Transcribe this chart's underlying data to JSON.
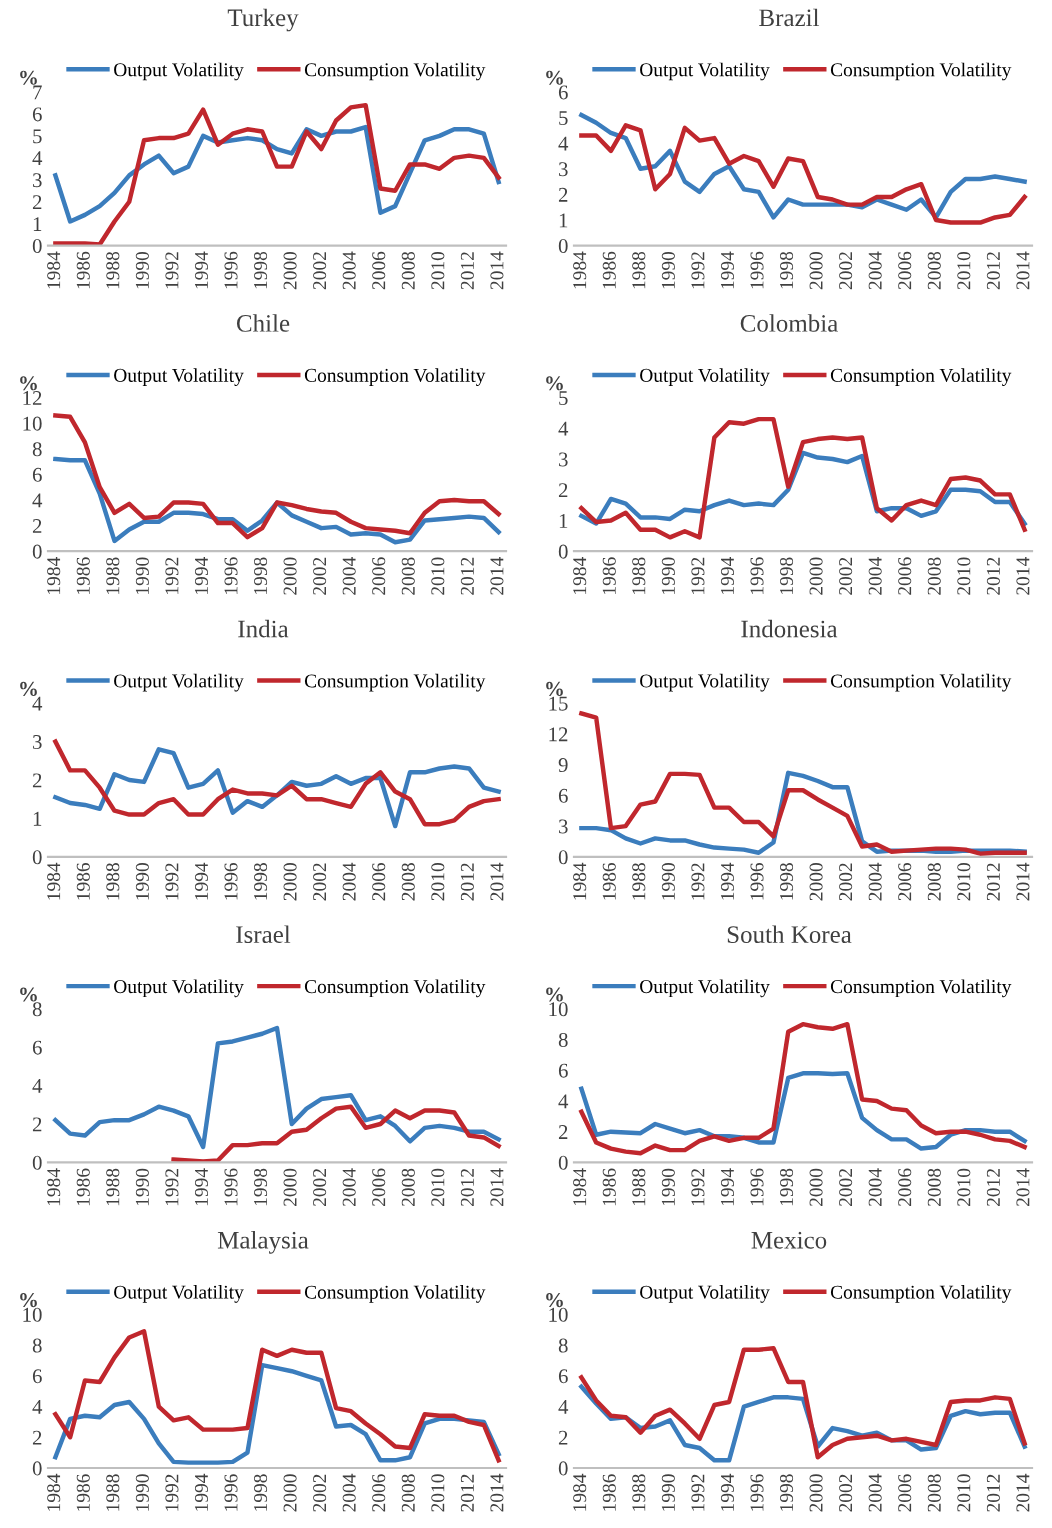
{
  "chart_data": [
    {
      "type": "line",
      "title": "Turkey",
      "ylabel": "%",
      "legend": "top",
      "ylim": [
        0,
        7
      ],
      "yticks": [
        0,
        1,
        2,
        3,
        4,
        5,
        6,
        7
      ],
      "categories": [
        "1984",
        null,
        "1986",
        null,
        "1988",
        null,
        "1990",
        null,
        "1992",
        null,
        "1994",
        null,
        "1996",
        null,
        "1998",
        null,
        "2000",
        null,
        "2002",
        null,
        "2004",
        null,
        "2006",
        null,
        "2008",
        null,
        "2010",
        null,
        "2012",
        null,
        "2014"
      ],
      "series": [
        {
          "name": "Output Volatility",
          "color": "#3b7dbd",
          "values": [
            3.2,
            1.1,
            1.4,
            1.8,
            2.4,
            3.2,
            3.7,
            4.1,
            3.3,
            3.6,
            5.0,
            4.7,
            4.8,
            4.9,
            4.8,
            4.4,
            4.2,
            5.3,
            5.0,
            5.2,
            5.2,
            5.4,
            1.5,
            1.8,
            3.3,
            4.8,
            5.0,
            5.3,
            5.3,
            5.1,
            2.9
          ]
        },
        {
          "name": "Consumption Volatility",
          "color": "#c0272d",
          "values": [
            0.1,
            0.1,
            0.1,
            0.05,
            1.1,
            2.0,
            4.8,
            4.9,
            4.9,
            5.1,
            6.2,
            4.6,
            5.1,
            5.3,
            5.2,
            3.6,
            3.6,
            5.2,
            4.4,
            5.7,
            6.3,
            6.4,
            2.6,
            2.5,
            3.7,
            3.7,
            3.5,
            4.0,
            4.1,
            4.0,
            3.1
          ]
        }
      ]
    },
    {
      "type": "line",
      "title": "Brazil",
      "ylabel": "%",
      "legend": "top",
      "ylim": [
        0,
        6
      ],
      "yticks": [
        0,
        1,
        2,
        3,
        4,
        5,
        6
      ],
      "categories": [
        "1984",
        null,
        "1986",
        null,
        "1988",
        null,
        "1990",
        null,
        "1992",
        null,
        "1994",
        null,
        "1996",
        null,
        "1998",
        null,
        "2000",
        null,
        "2002",
        null,
        "2004",
        null,
        "2006",
        null,
        "2008",
        null,
        "2010",
        null,
        "2012",
        null,
        "2014"
      ],
      "series": [
        {
          "name": "Output Volatility",
          "color": "#3b7dbd",
          "values": [
            5.1,
            4.8,
            4.4,
            4.2,
            3.0,
            3.1,
            3.7,
            2.5,
            2.1,
            2.8,
            3.1,
            2.2,
            2.1,
            1.1,
            1.8,
            1.6,
            1.6,
            1.6,
            1.6,
            1.5,
            1.8,
            1.6,
            1.4,
            1.8,
            1.1,
            2.1,
            2.6,
            2.6,
            2.7,
            2.6,
            2.5
          ]
        },
        {
          "name": "Consumption Volatility",
          "color": "#c0272d",
          "values": [
            4.3,
            4.3,
            3.7,
            4.7,
            4.5,
            2.2,
            2.8,
            4.6,
            4.1,
            4.2,
            3.2,
            3.5,
            3.3,
            2.3,
            3.4,
            3.3,
            1.9,
            1.8,
            1.6,
            1.6,
            1.9,
            1.9,
            2.2,
            2.4,
            1.0,
            0.9,
            0.9,
            0.9,
            1.1,
            1.2,
            1.9
          ]
        }
      ]
    },
    {
      "type": "line",
      "title": "Chile",
      "ylabel": "%",
      "legend": "top",
      "ylim": [
        0,
        12
      ],
      "yticks": [
        0,
        2,
        4,
        6,
        8,
        10,
        12
      ],
      "categories": [
        "1984",
        null,
        "1986",
        null,
        "1988",
        null,
        "1990",
        null,
        "1992",
        null,
        "1994",
        null,
        "1996",
        null,
        "1998",
        null,
        "2000",
        null,
        "2002",
        null,
        "2004",
        null,
        "2006",
        null,
        "2008",
        null,
        "2010",
        null,
        "2012",
        null,
        "2014"
      ],
      "series": [
        {
          "name": "Output Volatility",
          "color": "#3b7dbd",
          "values": [
            7.2,
            7.1,
            7.1,
            4.5,
            0.8,
            1.7,
            2.3,
            2.3,
            3.0,
            3.0,
            2.9,
            2.5,
            2.5,
            1.6,
            2.4,
            3.8,
            2.8,
            2.3,
            1.8,
            1.9,
            1.3,
            1.4,
            1.3,
            0.7,
            0.9,
            2.4,
            2.5,
            2.6,
            2.7,
            2.6,
            1.5
          ]
        },
        {
          "name": "Consumption Volatility",
          "color": "#c0272d",
          "values": [
            10.6,
            10.5,
            8.5,
            5.0,
            3.0,
            3.7,
            2.6,
            2.7,
            3.8,
            3.8,
            3.7,
            2.2,
            2.2,
            1.1,
            1.8,
            3.8,
            3.6,
            3.3,
            3.1,
            3.0,
            2.3,
            1.8,
            1.7,
            1.6,
            1.4,
            3.0,
            3.9,
            4.0,
            3.9,
            3.9,
            2.9
          ]
        }
      ]
    },
    {
      "type": "line",
      "title": "Colombia",
      "ylabel": "%",
      "legend": "top",
      "ylim": [
        0,
        5
      ],
      "yticks": [
        0,
        1,
        2,
        3,
        4,
        5
      ],
      "categories": [
        "1984",
        null,
        "1986",
        null,
        "1988",
        null,
        "1990",
        null,
        "1992",
        null,
        "1994",
        null,
        "1996",
        null,
        "1998",
        null,
        "2000",
        null,
        "2002",
        null,
        "2004",
        null,
        "2006",
        null,
        "2008",
        null,
        "2010",
        null,
        "2012",
        null,
        "2014"
      ],
      "series": [
        {
          "name": "Output Volatility",
          "color": "#3b7dbd",
          "values": [
            1.15,
            0.9,
            1.7,
            1.55,
            1.1,
            1.1,
            1.05,
            1.35,
            1.3,
            1.5,
            1.65,
            1.5,
            1.55,
            1.5,
            2.0,
            3.2,
            3.05,
            3.0,
            2.9,
            3.1,
            1.3,
            1.4,
            1.4,
            1.15,
            1.3,
            2.0,
            2.0,
            1.95,
            1.6,
            1.6,
            0.9
          ]
        },
        {
          "name": "Consumption Volatility",
          "color": "#c0272d",
          "values": [
            1.4,
            0.95,
            1.0,
            1.25,
            0.7,
            0.7,
            0.45,
            0.65,
            0.45,
            3.7,
            4.2,
            4.15,
            4.3,
            4.3,
            2.1,
            3.55,
            3.65,
            3.7,
            3.65,
            3.7,
            1.4,
            1.0,
            1.5,
            1.65,
            1.5,
            2.35,
            2.4,
            2.3,
            1.85,
            1.85,
            0.7
          ]
        }
      ]
    },
    {
      "type": "line",
      "title": "India",
      "ylabel": "%",
      "legend": "top",
      "ylim": [
        0,
        4
      ],
      "yticks": [
        0,
        1,
        2,
        3,
        4
      ],
      "categories": [
        "1984",
        null,
        "1986",
        null,
        "1988",
        null,
        "1990",
        null,
        "1992",
        null,
        "1994",
        null,
        "1996",
        null,
        "1998",
        null,
        "2000",
        null,
        "2002",
        null,
        "2004",
        null,
        "2006",
        null,
        "2008",
        null,
        "2010",
        null,
        "2012",
        null,
        "2014"
      ],
      "series": [
        {
          "name": "Output Volatility",
          "color": "#3b7dbd",
          "values": [
            1.55,
            1.4,
            1.35,
            1.25,
            2.15,
            2.0,
            1.95,
            2.8,
            2.7,
            1.8,
            1.9,
            2.25,
            1.15,
            1.45,
            1.3,
            1.6,
            1.95,
            1.85,
            1.9,
            2.1,
            1.9,
            2.05,
            2.05,
            0.8,
            2.2,
            2.2,
            2.3,
            2.35,
            2.3,
            1.8,
            1.7
          ]
        },
        {
          "name": "Consumption Volatility",
          "color": "#c0272d",
          "values": [
            3.0,
            2.25,
            2.25,
            1.8,
            1.2,
            1.1,
            1.1,
            1.4,
            1.5,
            1.1,
            1.1,
            1.5,
            1.75,
            1.65,
            1.65,
            1.6,
            1.85,
            1.5,
            1.5,
            1.4,
            1.3,
            1.9,
            2.2,
            1.7,
            1.5,
            0.85,
            0.85,
            0.95,
            1.3,
            1.45,
            1.5
          ]
        }
      ]
    },
    {
      "type": "line",
      "title": "Indonesia",
      "ylabel": "%",
      "legend": "top",
      "ylim": [
        0,
        15
      ],
      "yticks": [
        0,
        3,
        6,
        9,
        12,
        15
      ],
      "categories": [
        "1984",
        null,
        "1986",
        null,
        "1988",
        null,
        "1990",
        null,
        "1992",
        null,
        "1994",
        null,
        "1996",
        null,
        "1998",
        null,
        "2000",
        null,
        "2002",
        null,
        "2004",
        null,
        "2006",
        null,
        "2008",
        null,
        "2010",
        null,
        "2012",
        null,
        "2014"
      ],
      "series": [
        {
          "name": "Output Volatility",
          "color": "#3b7dbd",
          "values": [
            2.8,
            2.8,
            2.6,
            1.8,
            1.3,
            1.8,
            1.6,
            1.6,
            1.2,
            0.9,
            0.8,
            0.7,
            0.4,
            1.4,
            8.2,
            7.9,
            7.4,
            6.8,
            6.8,
            1.5,
            0.5,
            0.6,
            0.6,
            0.6,
            0.5,
            0.5,
            0.6,
            0.6,
            0.6,
            0.6,
            0.5
          ]
        },
        {
          "name": "Consumption Volatility",
          "color": "#c0272d",
          "values": [
            14.0,
            13.6,
            2.8,
            3.0,
            5.1,
            5.4,
            8.1,
            8.1,
            8.0,
            4.8,
            4.8,
            3.4,
            3.4,
            2.0,
            6.5,
            6.5,
            5.6,
            4.8,
            4.0,
            1.0,
            1.2,
            0.5,
            0.6,
            0.7,
            0.8,
            0.8,
            0.7,
            0.3,
            0.4,
            0.4,
            0.4
          ]
        }
      ]
    },
    {
      "type": "line",
      "title": "Israel",
      "ylabel": "%",
      "legend": "top",
      "ylim": [
        0,
        8
      ],
      "yticks": [
        0,
        2,
        4,
        6,
        8
      ],
      "categories": [
        "1984",
        null,
        "1986",
        null,
        "1988",
        null,
        "1990",
        null,
        "1992",
        null,
        "1994",
        null,
        "1996",
        null,
        "1998",
        null,
        "2000",
        null,
        "2002",
        null,
        "2004",
        null,
        "2006",
        null,
        "2008",
        null,
        "2010",
        null,
        "2012",
        null,
        "2014"
      ],
      "series": [
        {
          "name": "Output Volatility",
          "color": "#3b7dbd",
          "values": [
            2.2,
            1.5,
            1.4,
            2.1,
            2.2,
            2.2,
            2.5,
            2.9,
            2.7,
            2.4,
            0.8,
            6.2,
            6.3,
            6.5,
            6.7,
            7.0,
            2.0,
            2.8,
            3.3,
            3.4,
            3.5,
            2.2,
            2.4,
            1.9,
            1.1,
            1.8,
            1.9,
            1.8,
            1.6,
            1.6,
            1.2
          ]
        },
        {
          "name": "Consumption Volatility",
          "color": "#c0272d",
          "values": [
            null,
            null,
            null,
            null,
            null,
            null,
            null,
            null,
            0.15,
            0.1,
            0.05,
            0.1,
            0.9,
            0.9,
            1.0,
            1.0,
            1.6,
            1.7,
            2.3,
            2.8,
            2.9,
            1.8,
            2.0,
            2.7,
            2.3,
            2.7,
            2.7,
            2.6,
            1.4,
            1.3,
            0.85
          ]
        }
      ]
    },
    {
      "type": "line",
      "title": "South Korea",
      "ylabel": "%",
      "legend": "top",
      "ylim": [
        0,
        10
      ],
      "yticks": [
        0,
        2,
        4,
        6,
        8,
        10
      ],
      "categories": [
        "1984",
        null,
        "1986",
        null,
        "1988",
        null,
        "1990",
        null,
        "1992",
        null,
        "1994",
        null,
        "1996",
        null,
        "1998",
        null,
        "2000",
        null,
        "2002",
        null,
        "2004",
        null,
        "2006",
        null,
        "2008",
        null,
        "2010",
        null,
        "2012",
        null,
        "2014"
      ],
      "series": [
        {
          "name": "Output Volatility",
          "color": "#3b7dbd",
          "values": [
            4.8,
            1.8,
            2.0,
            1.95,
            1.9,
            2.5,
            2.2,
            1.9,
            2.1,
            1.7,
            1.7,
            1.6,
            1.3,
            1.3,
            5.5,
            5.8,
            5.8,
            5.75,
            5.8,
            2.9,
            2.1,
            1.5,
            1.5,
            0.9,
            1.0,
            1.8,
            2.1,
            2.1,
            2.0,
            2.0,
            1.4
          ]
        },
        {
          "name": "Consumption Volatility",
          "color": "#c0272d",
          "values": [
            3.3,
            1.3,
            0.9,
            0.7,
            0.6,
            1.1,
            0.8,
            0.8,
            1.4,
            1.7,
            1.4,
            1.6,
            1.6,
            2.2,
            8.5,
            9.0,
            8.8,
            8.7,
            9.0,
            4.1,
            4.0,
            3.5,
            3.4,
            2.4,
            1.9,
            2.0,
            2.0,
            1.8,
            1.5,
            1.4,
            1.0
          ]
        }
      ]
    },
    {
      "type": "line",
      "title": "Malaysia",
      "ylabel": "%",
      "legend": "top",
      "ylim": [
        0,
        10
      ],
      "yticks": [
        0,
        2,
        4,
        6,
        8,
        10
      ],
      "categories": [
        "1984",
        null,
        "1986",
        null,
        "1988",
        null,
        "1990",
        null,
        "1992",
        null,
        "1994",
        null,
        "1996",
        null,
        "1998",
        null,
        "2000",
        null,
        "2002",
        null,
        "2004",
        null,
        "2006",
        null,
        "2008",
        null,
        "2010",
        null,
        "2012",
        null,
        "2014"
      ],
      "series": [
        {
          "name": "Output Volatility",
          "color": "#3b7dbd",
          "values": [
            0.7,
            3.2,
            3.4,
            3.3,
            4.1,
            4.3,
            3.2,
            1.6,
            0.4,
            0.35,
            0.35,
            0.35,
            0.4,
            1.0,
            6.7,
            6.5,
            6.3,
            6.0,
            5.7,
            2.7,
            2.8,
            2.2,
            0.5,
            0.5,
            0.7,
            2.9,
            3.2,
            3.2,
            3.1,
            3.0,
            0.9
          ]
        },
        {
          "name": "Consumption Volatility",
          "color": "#c0272d",
          "values": [
            3.5,
            2.0,
            5.7,
            5.6,
            7.2,
            8.5,
            8.9,
            4.0,
            3.1,
            3.3,
            2.5,
            2.5,
            2.5,
            2.6,
            7.7,
            7.3,
            7.7,
            7.5,
            7.5,
            3.9,
            3.7,
            2.9,
            2.2,
            1.4,
            1.3,
            3.5,
            3.4,
            3.4,
            3.0,
            2.8,
            0.5
          ]
        }
      ]
    },
    {
      "type": "line",
      "title": "Mexico",
      "ylabel": "%",
      "legend": "top",
      "ylim": [
        0,
        10
      ],
      "yticks": [
        0,
        2,
        4,
        6,
        8,
        10
      ],
      "categories": [
        "1984",
        null,
        "1986",
        null,
        "1988",
        null,
        "1990",
        null,
        "1992",
        null,
        "1994",
        null,
        "1996",
        null,
        "1998",
        null,
        "2000",
        null,
        "2002",
        null,
        "2004",
        null,
        "2006",
        null,
        "2008",
        null,
        "2010",
        null,
        "2012",
        null,
        "2014"
      ],
      "series": [
        {
          "name": "Output Volatility",
          "color": "#3b7dbd",
          "values": [
            5.3,
            4.2,
            3.2,
            3.3,
            2.6,
            2.7,
            3.1,
            1.5,
            1.3,
            0.5,
            0.5,
            4.0,
            4.3,
            4.6,
            4.6,
            4.5,
            1.4,
            2.6,
            2.4,
            2.1,
            2.3,
            1.8,
            1.8,
            1.2,
            1.3,
            3.4,
            3.7,
            3.5,
            3.6,
            3.6,
            1.4
          ]
        },
        {
          "name": "Consumption Volatility",
          "color": "#c0272d",
          "values": [
            5.9,
            4.4,
            3.4,
            3.3,
            2.3,
            3.4,
            3.8,
            2.9,
            1.9,
            4.1,
            4.3,
            7.7,
            7.7,
            7.8,
            5.6,
            5.6,
            0.7,
            1.5,
            1.9,
            2.0,
            2.1,
            1.8,
            1.9,
            1.7,
            1.5,
            4.3,
            4.4,
            4.4,
            4.6,
            4.5,
            1.6
          ]
        }
      ]
    }
  ]
}
